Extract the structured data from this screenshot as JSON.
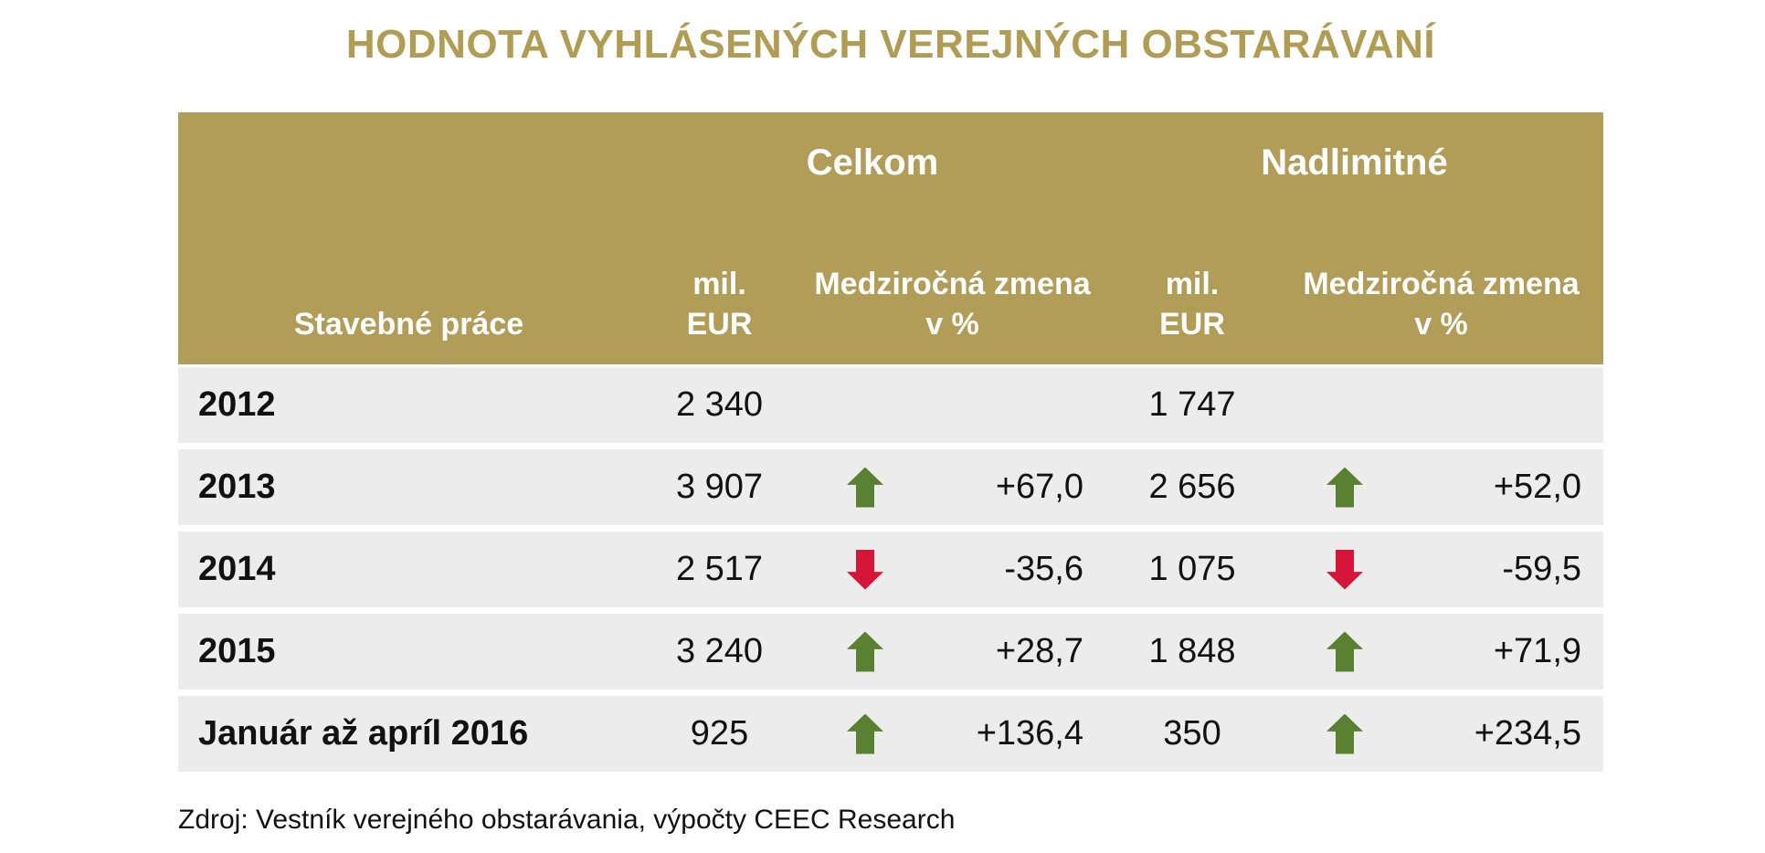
{
  "title": "HODNOTA VYHLÁSENÝCH VEREJNÝCH OBSTARÁVANÍ",
  "source": "Zdroj: Vestník verejného obstarávania, výpočty CEEC Research",
  "colors": {
    "gold_header": "#b19d58",
    "gold_title": "#b19c53",
    "row_background": "#ececec",
    "trend_up_green": "#5a8032",
    "trend_down_red": "#d61638",
    "header_text": "#ffffff",
    "body_text": "#111111"
  },
  "table": {
    "group_headers": {
      "celkom": "Celkom",
      "nadlimitne": "Nadlimitné"
    },
    "col_headers": {
      "row_label": "Stavebné práce",
      "mil_line1": "mil.",
      "mil_line2": "EUR",
      "change_line1": "Medziročná zmena",
      "change_line2": "v %"
    },
    "rows": [
      {
        "label": "2012",
        "celkom_value": "2 340",
        "celkom_trend": "none",
        "celkom_change": "",
        "nadlimitne_value": "1 747",
        "nadlimitne_trend": "none",
        "nadlimitne_change": ""
      },
      {
        "label": "2013",
        "celkom_value": "3 907",
        "celkom_trend": "up",
        "celkom_change": "+67,0",
        "nadlimitne_value": "2 656",
        "nadlimitne_trend": "up",
        "nadlimitne_change": "+52,0"
      },
      {
        "label": "2014",
        "celkom_value": "2 517",
        "celkom_trend": "down",
        "celkom_change": "-35,6",
        "nadlimitne_value": "1 075",
        "nadlimitne_trend": "down",
        "nadlimitne_change": "-59,5"
      },
      {
        "label": "2015",
        "celkom_value": "3 240",
        "celkom_trend": "up",
        "celkom_change": "+28,7",
        "nadlimitne_value": "1 848",
        "nadlimitne_trend": "up",
        "nadlimitne_change": "+71,9"
      },
      {
        "label": "Január až apríl 2016",
        "celkom_value": "925",
        "celkom_trend": "up",
        "celkom_change": "+136,4",
        "nadlimitne_value": "350",
        "nadlimitne_trend": "up",
        "nadlimitne_change": "+234,5"
      }
    ]
  },
  "chart_data": {
    "type": "table",
    "title": "HODNOTA VYHLÁSENÝCH VEREJNÝCH OBSTARÁVANÍ",
    "row_header": "Stavebné práce",
    "column_groups": [
      "Celkom",
      "Nadlimitné"
    ],
    "columns": [
      "Celkom mil. EUR",
      "Celkom medziročná zmena v %",
      "Nadlimitné mil. EUR",
      "Nadlimitné medziročná zmena v %"
    ],
    "categories": [
      "2012",
      "2013",
      "2014",
      "2015",
      "Január až apríl 2016"
    ],
    "series": [
      {
        "name": "Celkom mil. EUR",
        "values": [
          2340,
          3907,
          2517,
          3240,
          925
        ]
      },
      {
        "name": "Celkom medziročná zmena v %",
        "values": [
          null,
          67.0,
          -35.6,
          28.7,
          136.4
        ]
      },
      {
        "name": "Nadlimitné mil. EUR",
        "values": [
          1747,
          2656,
          1075,
          1848,
          350
        ]
      },
      {
        "name": "Nadlimitné medziročná zmena v %",
        "values": [
          null,
          52.0,
          -59.5,
          71.9,
          234.5
        ]
      }
    ],
    "source": "Zdroj: Vestník verejného obstarávania, výpočty CEEC Research"
  }
}
